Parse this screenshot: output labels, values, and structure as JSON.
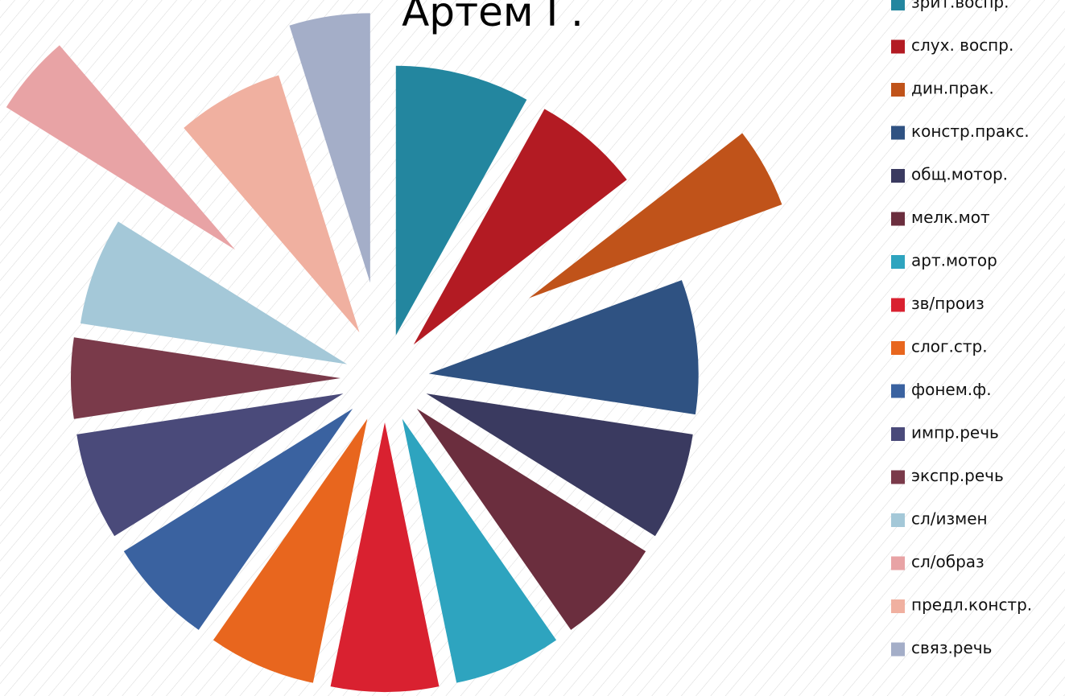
{
  "chart_data": {
    "type": "pie",
    "title": "Артем Г.",
    "categories": [
      "зрит.воспр.",
      "слух. воспр.",
      "дин.прак.",
      "констр.пракс.",
      "общ.мотор.",
      "мелк.мот",
      "арт.мотор",
      "зв/произ",
      "слог.стр.",
      "фонем.ф.",
      "импр.речь",
      "экспр.речь",
      "сл/измен",
      "сл/образ",
      "предл.констр.",
      "связ.речь"
    ],
    "values": [
      5,
      4,
      3,
      5,
      4,
      4,
      4,
      4,
      4,
      4,
      4,
      3,
      4,
      3,
      4,
      3
    ],
    "colors": [
      "#23869f",
      "#b31b23",
      "#c0531a",
      "#2f5282",
      "#3a3a60",
      "#6b2e3e",
      "#2ea4bf",
      "#d92130",
      "#e8661e",
      "#3a62a0",
      "#4a4a7a",
      "#7a3a4a",
      "#a4c8d8",
      "#e8a3a5",
      "#f0b0a0",
      "#a4aec8"
    ],
    "legend": "right"
  }
}
